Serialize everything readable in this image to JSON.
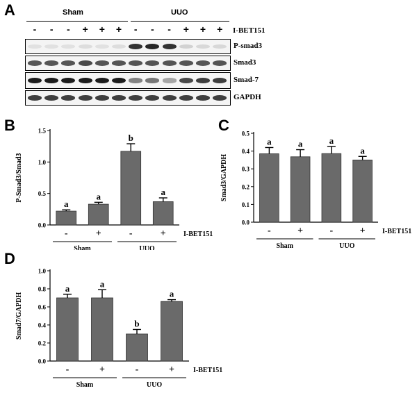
{
  "panels": {
    "A": "A",
    "B": "B",
    "C": "C",
    "D": "D"
  },
  "blot": {
    "groups": [
      "Sham",
      "UUO"
    ],
    "treatment_label": "I-BET151",
    "signs": [
      "-",
      "-",
      "-",
      "+",
      "+",
      "+",
      "-",
      "-",
      "-",
      "+",
      "+",
      "+"
    ],
    "rows": [
      {
        "label": "P-smad3",
        "intensity": [
          0.05,
          0.05,
          0.05,
          0.1,
          0.05,
          0.1,
          0.85,
          0.9,
          0.85,
          0.15,
          0.12,
          0.12
        ]
      },
      {
        "label": "Smad3",
        "intensity": [
          0.7,
          0.7,
          0.7,
          0.75,
          0.7,
          0.7,
          0.7,
          0.7,
          0.7,
          0.7,
          0.7,
          0.7
        ]
      },
      {
        "label": "Smad-7",
        "intensity": [
          0.95,
          0.95,
          0.95,
          0.95,
          0.95,
          0.95,
          0.5,
          0.55,
          0.35,
          0.75,
          0.8,
          0.8
        ]
      },
      {
        "label": "GAPDH",
        "intensity": [
          0.8,
          0.8,
          0.8,
          0.8,
          0.8,
          0.8,
          0.8,
          0.8,
          0.8,
          0.8,
          0.8,
          0.8
        ]
      }
    ]
  },
  "chart_data": [
    {
      "type": "bar",
      "panel": "B",
      "ylabel": "P-Smad3/Smad3",
      "ylim": [
        0,
        1.5
      ],
      "yticks": [
        0.0,
        0.5,
        1.0,
        1.5
      ],
      "values": [
        0.22,
        0.33,
        1.17,
        0.37
      ],
      "errors": [
        0.02,
        0.03,
        0.12,
        0.06
      ],
      "letters": [
        "a",
        "a",
        "b",
        "a"
      ],
      "signs": [
        "-",
        "+",
        "-",
        "+"
      ],
      "groups": [
        "Sham",
        "UUO"
      ],
      "treatment_label": "I-BET151"
    },
    {
      "type": "bar",
      "panel": "C",
      "ylabel": "Smad3/GAPDH",
      "ylim": [
        0,
        0.5
      ],
      "yticks": [
        0.0,
        0.1,
        0.2,
        0.3,
        0.4,
        0.5
      ],
      "values": [
        0.385,
        0.368,
        0.386,
        0.35
      ],
      "errors": [
        0.035,
        0.04,
        0.04,
        0.02
      ],
      "letters": [
        "a",
        "a",
        "a",
        "a"
      ],
      "signs": [
        "-",
        "+",
        "-",
        "+"
      ],
      "groups": [
        "Sham",
        "UUO"
      ],
      "treatment_label": "I-BET151"
    },
    {
      "type": "bar",
      "panel": "D",
      "ylabel": "Smad7/GAPDH",
      "ylim": [
        0,
        1.0
      ],
      "yticks": [
        0.0,
        0.2,
        0.4,
        0.6,
        0.8,
        1.0
      ],
      "values": [
        0.7,
        0.7,
        0.3,
        0.66
      ],
      "errors": [
        0.04,
        0.09,
        0.05,
        0.02
      ],
      "letters": [
        "a",
        "a",
        "b",
        "a"
      ],
      "signs": [
        "-",
        "+",
        "-",
        "+"
      ],
      "groups": [
        "Sham",
        "UUO"
      ],
      "treatment_label": "I-BET151"
    }
  ],
  "colors": {
    "bar": "#6a6a6a",
    "axis": "#000000"
  }
}
